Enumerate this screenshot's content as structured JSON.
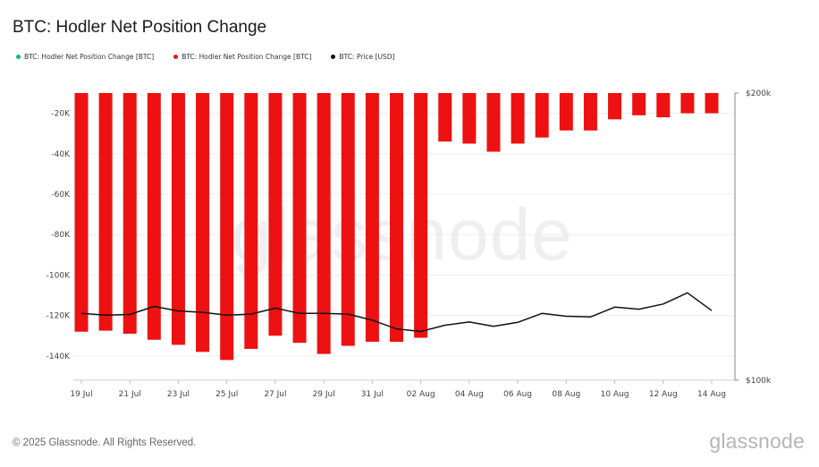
{
  "brand": {
    "watermark": "glassnode",
    "logo_text": "glassnode"
  },
  "footer": {
    "copyright": "© 2025 Glassnode. All Rights Reserved."
  },
  "chart_data": {
    "type": "bar",
    "title": "BTC: Hodler Net Position Change",
    "legend": [
      {
        "label": "BTC: Hodler Net Position Change [BTC]",
        "color": "#1ab385"
      },
      {
        "label": "BTC: Hodler Net Position Change [BTC]",
        "color": "#ee1111"
      },
      {
        "label": "BTC: Price [USD]",
        "color": "#111111"
      }
    ],
    "legend_position": "top-left",
    "grid": true,
    "y_left": {
      "ylim": [
        -152000,
        -10000
      ],
      "ticks": [
        -20000,
        -40000,
        -60000,
        -80000,
        -100000,
        -120000,
        -140000
      ],
      "tick_labels": [
        "-20K",
        "-40K",
        "-60K",
        "-80K",
        "-100K",
        "-120K",
        "-140K"
      ]
    },
    "y_right": {
      "scale": "log",
      "ylim": [
        100000,
        200000
      ],
      "tick_labels": [
        "$200k",
        "$100k"
      ],
      "tick_values": [
        200000,
        100000
      ]
    },
    "x_ticks": [
      "19 Jul",
      "21 Jul",
      "23 Jul",
      "25 Jul",
      "27 Jul",
      "29 Jul",
      "31 Jul",
      "02 Aug",
      "04 Aug",
      "06 Aug",
      "08 Aug",
      "10 Aug",
      "12 Aug",
      "14 Aug"
    ],
    "dates": [
      "2025-07-19",
      "2025-07-20",
      "2025-07-21",
      "2025-07-22",
      "2025-07-23",
      "2025-07-24",
      "2025-07-25",
      "2025-07-26",
      "2025-07-27",
      "2025-07-28",
      "2025-07-29",
      "2025-07-30",
      "2025-07-31",
      "2025-08-01",
      "2025-08-02",
      "2025-08-03",
      "2025-08-04",
      "2025-08-05",
      "2025-08-06",
      "2025-08-07",
      "2025-08-08",
      "2025-08-09",
      "2025-08-10",
      "2025-08-11",
      "2025-08-12",
      "2025-08-13",
      "2025-08-14"
    ],
    "series": [
      {
        "name": "BTC: Hodler Net Position Change [BTC]",
        "type": "bar",
        "color": "#ee1111",
        "values": [
          -128000,
          -127500,
          -129000,
          -132000,
          -134500,
          -138000,
          -142000,
          -136500,
          -130000,
          -133500,
          -139000,
          -135000,
          -133000,
          -133000,
          -131000,
          -34000,
          -35000,
          -39000,
          -35000,
          -32000,
          -28500,
          -28500,
          -23000,
          -21000,
          -22000,
          -20000,
          -20000
        ]
      },
      {
        "name": "BTC: Price [USD]",
        "type": "line",
        "color": "#111111",
        "values": [
          117500,
          117000,
          117200,
          119500,
          118200,
          117800,
          117000,
          117300,
          119000,
          117500,
          117500,
          117300,
          115600,
          113200,
          112500,
          114200,
          115100,
          113900,
          115000,
          117500,
          116700,
          116500,
          119300,
          118700,
          120200,
          123500,
          118300
        ]
      }
    ]
  }
}
